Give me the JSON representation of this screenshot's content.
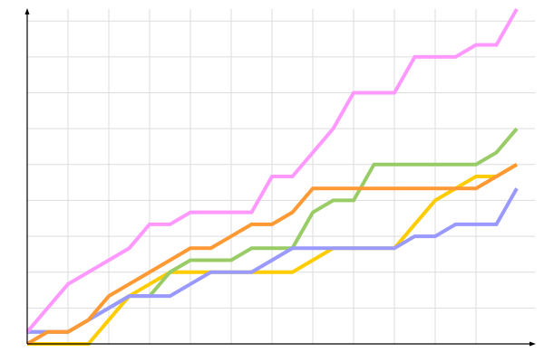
{
  "chart_data": {
    "type": "line",
    "title": "",
    "xlabel": "",
    "ylabel": "",
    "x": [
      0,
      1,
      2,
      3,
      4,
      5,
      6,
      7,
      8,
      9,
      10,
      11,
      12,
      13,
      14,
      15,
      16,
      17,
      18,
      19,
      20,
      21,
      22,
      23,
      24
    ],
    "xlim": [
      0,
      24
    ],
    "ylim": [
      0,
      28
    ],
    "grid": true,
    "x_grid_step": 2,
    "y_grid_step": 3,
    "series": [
      {
        "color": "#ffcc00",
        "values": [
          0,
          0,
          0,
          0,
          2,
          4,
          5,
          6,
          6,
          6,
          6,
          6,
          6,
          6,
          7,
          8,
          8,
          8,
          8,
          10,
          12,
          13,
          14,
          14,
          15
        ]
      },
      {
        "color": "#99cc66",
        "values": [
          1,
          1,
          1,
          2,
          3,
          4,
          4,
          6,
          7,
          7,
          7,
          8,
          8,
          8,
          11,
          12,
          12,
          15,
          15,
          15,
          15,
          15,
          15,
          16,
          18
        ]
      },
      {
        "color": "#9999ff",
        "values": [
          1,
          1,
          1,
          2,
          3,
          4,
          4,
          4,
          5,
          6,
          6,
          6,
          7,
          8,
          8,
          8,
          8,
          8,
          8,
          9,
          9,
          10,
          10,
          10,
          13
        ]
      },
      {
        "color": "#ff9933",
        "values": [
          0,
          1,
          1,
          2,
          4,
          5,
          6,
          7,
          8,
          8,
          9,
          10,
          10,
          11,
          13,
          13,
          13,
          13,
          13,
          13,
          13,
          13,
          13,
          14,
          15
        ]
      },
      {
        "color": "#ff99ff",
        "values": [
          1,
          3,
          5,
          6,
          7,
          8,
          10,
          10,
          11,
          11,
          11,
          11,
          14,
          14,
          16,
          18,
          21,
          21,
          21,
          24,
          24,
          24,
          25,
          25,
          28
        ]
      }
    ]
  }
}
